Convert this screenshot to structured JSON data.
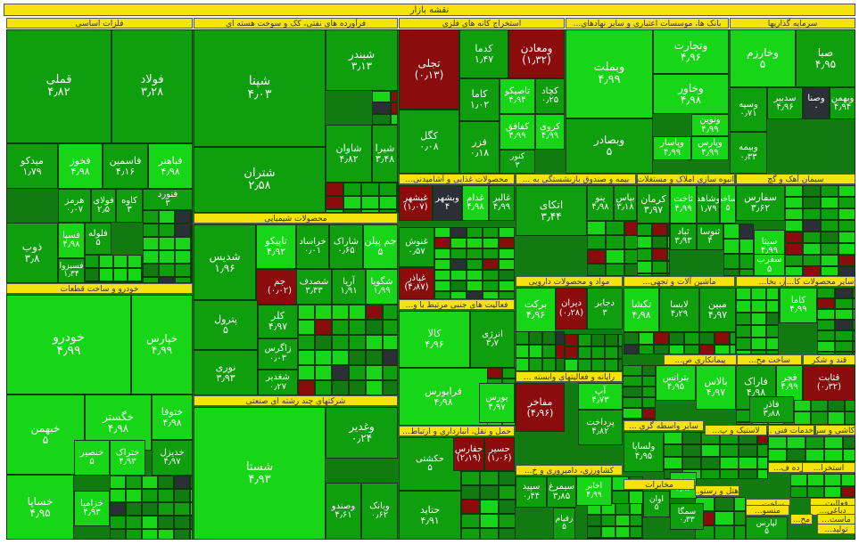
{
  "title": "نقشه بازار",
  "colors": {
    "up_bright": "#17d617",
    "up_medium": "#0e9e0e",
    "up_dark": "#117a11",
    "down": "#8b0c0c",
    "neutral": "#2b3036",
    "header": "#f4e40b"
  },
  "chart_data": {
    "type": "treemap",
    "title": "نقشه بازار",
    "sectors": [
      "فلزات اساسی",
      "فرآورده های نفتی، کک و سوخت هسته ای",
      "استخراج کانه های فلزی",
      "بانک ها، موسسات اعتباری و سایر نهادهای...",
      "سرمایه گذاریها",
      "محصولات شیمیایی",
      "خودرو و ساخت قطعات",
      "شرکتهای چند رشته ای صنعتی",
      "محصولات غذایی و آشامیدنی...",
      "بیمه و صندوق بازنشستگی به ...",
      "انبوه سازی املاک و مستغلات",
      "سیمان آهک و گچ",
      "مواد و محصولات دارویی",
      "عرضه برق، گاز، بخا...",
      "ماشین آلات و تجهی...",
      "سایر محصولات کا...",
      "فعالیت های جنبی مرتبط با و...",
      "رایانه و فعالیتهای وابسته ...",
      "پیمانکاری ص...",
      "ساخت مح...",
      "قند و شکر",
      "حمل و نقل، انبارداری و ارتباط...",
      "سایر واسطه گری ...",
      "لاستیک و پ...",
      "خدمات فنی ...",
      "کاشی و سر...",
      "خرده ف...",
      "استخرا...",
      "کشاورزی، دامپروری و خ...",
      "مخابرات",
      "هتل و رستو...",
      "ساخت ...",
      "فعالیت...",
      "منسو...",
      "دباغی...",
      "مح...",
      "ماست...",
      "تولید..."
    ],
    "tiles": [
      {
        "name": "قملی",
        "change": "4.82"
      },
      {
        "name": "فولاد",
        "change": "3.28"
      },
      {
        "name": "میدکو",
        "change": "1.79"
      },
      {
        "name": "فخوز",
        "change": "4.98"
      },
      {
        "name": "فاسمین",
        "change": "4.16"
      },
      {
        "name": "فباهنر",
        "change": "4.98"
      },
      {
        "name": "هرمز",
        "change": "0.07"
      },
      {
        "name": "فولای",
        "change": "2.5"
      },
      {
        "name": "کاوه",
        "change": "3"
      },
      {
        "name": "فنورد",
        "change": "3"
      },
      {
        "name": "ذوب",
        "change": "3.8"
      },
      {
        "name": "فسپا",
        "change": "4.98"
      },
      {
        "name": "فلوله",
        "change": "5"
      },
      {
        "name": "فسبزوا",
        "change": "1.34"
      },
      {
        "name": "شپنا",
        "change": "4.03"
      },
      {
        "name": "شبندر",
        "change": "3.13"
      },
      {
        "name": "شتران",
        "change": "2.58"
      },
      {
        "name": "شاوان",
        "change": "4.82"
      },
      {
        "name": "شیرا",
        "change": "3.48"
      },
      {
        "name": "تجلی",
        "change": "(0.13)"
      },
      {
        "name": "کدما",
        "change": "1.47"
      },
      {
        "name": "ومعادن",
        "change": "(1.32)"
      },
      {
        "name": "کاما",
        "change": "1.02"
      },
      {
        "name": "تاصیکو",
        "change": "4.94"
      },
      {
        "name": "کچاد",
        "change": "0.25"
      },
      {
        "name": "کگل",
        "change": "0.08"
      },
      {
        "name": "فزر",
        "change": "0.18"
      },
      {
        "name": "کفافق",
        "change": "4.99"
      },
      {
        "name": "کروی",
        "change": "4.99"
      },
      {
        "name": "کنور",
        "change": "3"
      },
      {
        "name": "وبملت",
        "change": "4.99"
      },
      {
        "name": "وتجارت",
        "change": "4.96"
      },
      {
        "name": "وخاور",
        "change": "4.98"
      },
      {
        "name": "وبصادر",
        "change": "5"
      },
      {
        "name": "ونوین",
        "change": "4.99"
      },
      {
        "name": "وپاسار",
        "change": "4.99"
      },
      {
        "name": "وپارس",
        "change": "4.99"
      },
      {
        "name": "وخارزم",
        "change": "5"
      },
      {
        "name": "صبا",
        "change": "4.95"
      },
      {
        "name": "وسپه",
        "change": "0.71"
      },
      {
        "name": "سدبیر",
        "change": "4.96"
      },
      {
        "name": "وصنا",
        "change": "0"
      },
      {
        "name": "وبهمن",
        "change": "4.94"
      },
      {
        "name": "وبیمه",
        "change": "0.33"
      },
      {
        "name": "شدیس",
        "change": "1.96"
      },
      {
        "name": "تاپیکو",
        "change": "4.92"
      },
      {
        "name": "خراساد",
        "change": "0.01"
      },
      {
        "name": "شاراک",
        "change": "0.65"
      },
      {
        "name": "جم پیلن",
        "change": "5"
      },
      {
        "name": "جم",
        "change": "(0.02)"
      },
      {
        "name": "شصدف",
        "change": "3.33"
      },
      {
        "name": "آریا",
        "change": "1.91"
      },
      {
        "name": "شگویا",
        "change": "1.99"
      },
      {
        "name": "پترول",
        "change": "5"
      },
      {
        "name": "کلر",
        "change": "4.97"
      },
      {
        "name": "زاگرس",
        "change": "0.03"
      },
      {
        "name": "نوری",
        "change": "3.93"
      },
      {
        "name": "شغدیر",
        "change": "0.27"
      },
      {
        "name": "خودرو",
        "change": "4.99"
      },
      {
        "name": "خپارس",
        "change": "4.99"
      },
      {
        "name": "خبهمن",
        "change": "5"
      },
      {
        "name": "خگستر",
        "change": "4.98"
      },
      {
        "name": "ختوقا",
        "change": "4.98"
      },
      {
        "name": "خنصیر",
        "change": "5"
      },
      {
        "name": "ختراک",
        "change": "4.93"
      },
      {
        "name": "خدیزل",
        "change": "4.97"
      },
      {
        "name": "خساپا",
        "change": "4.95"
      },
      {
        "name": "خزامیا",
        "change": "4.93"
      },
      {
        "name": "شستا",
        "change": "4.93"
      },
      {
        "name": "وغدیر",
        "change": "0.24"
      },
      {
        "name": "وصندو",
        "change": "4.61"
      },
      {
        "name": "وبانک",
        "change": "0.62"
      },
      {
        "name": "غبشهر",
        "change": "(1.07)"
      },
      {
        "name": "وبشهر",
        "change": "4"
      },
      {
        "name": "غدام",
        "change": "4.98"
      },
      {
        "name": "غالبر",
        "change": "4.99"
      },
      {
        "name": "غنوش",
        "change": "0.57"
      },
      {
        "name": "غپاذر",
        "change": "(4.87)"
      },
      {
        "name": "اتکای",
        "change": "3.44"
      },
      {
        "name": "ینو",
        "change": "4.98"
      },
      {
        "name": "بپاس",
        "change": "3.18"
      },
      {
        "name": "کرمان",
        "change": "3.97"
      },
      {
        "name": "ثاخت",
        "change": "4.99"
      },
      {
        "name": "وشاهد",
        "change": "1.79"
      },
      {
        "name": "وساخت",
        "change": "5"
      },
      {
        "name": "سفارس",
        "change": "3.62"
      },
      {
        "name": "سیتا",
        "change": "4.99"
      },
      {
        "name": "سفرب",
        "change": "5"
      },
      {
        "name": "ثباد",
        "change": "3.93"
      },
      {
        "name": "ثنوسا",
        "change": "4"
      },
      {
        "name": "برکت",
        "change": "4.96"
      },
      {
        "name": "دیران",
        "change": "(0.28)"
      },
      {
        "name": "دجابر",
        "change": "3"
      },
      {
        "name": "تکشا",
        "change": "4.98"
      },
      {
        "name": "لابسا",
        "change": "4.29"
      },
      {
        "name": "مبین",
        "change": "4.97"
      },
      {
        "name": "کسرا",
        "change": "4.88"
      },
      {
        "name": "کالا",
        "change": "4.96"
      },
      {
        "name": "انرژی",
        "change": "3.7"
      },
      {
        "name": "فرابورس",
        "change": "4.98"
      },
      {
        "name": "یورس",
        "change": "4.97"
      },
      {
        "name": "مفاخر",
        "change": "(4.96)"
      },
      {
        "name": "آپ",
        "change": "4.73"
      },
      {
        "name": "پرداخت",
        "change": "4.82"
      },
      {
        "name": "بترانس",
        "change": "4.95"
      },
      {
        "name": "بالاس",
        "change": "4.97"
      },
      {
        "name": "فاراک",
        "change": "4.98"
      },
      {
        "name": "قثابت",
        "change": "(0.32)"
      },
      {
        "name": "فجر",
        "change": "4.99"
      },
      {
        "name": "فاذر",
        "change": "3.88"
      },
      {
        "name": "ولساپا",
        "change": "4.95"
      },
      {
        "name": "حکشتی",
        "change": "5"
      },
      {
        "name": "حفارس",
        "change": "(2.19)"
      },
      {
        "name": "حسیر",
        "change": "(1.06)"
      },
      {
        "name": "حتاید",
        "change": "4.91"
      },
      {
        "name": "سپید",
        "change": "0.44"
      },
      {
        "name": "سیمرغ",
        "change": "3.85"
      },
      {
        "name": "اخابر",
        "change": "4.99"
      },
      {
        "name": "زقیام",
        "change": "5"
      },
      {
        "name": "اوان",
        "change": "5"
      },
      {
        "name": "سمگا",
        "change": "0.33"
      },
      {
        "name": "لپارس",
        "change": "5"
      },
      {
        "name": "کاما",
        "change": "4.99"
      },
      {
        "name": "خریخت",
        "change": "4.93"
      }
    ]
  }
}
